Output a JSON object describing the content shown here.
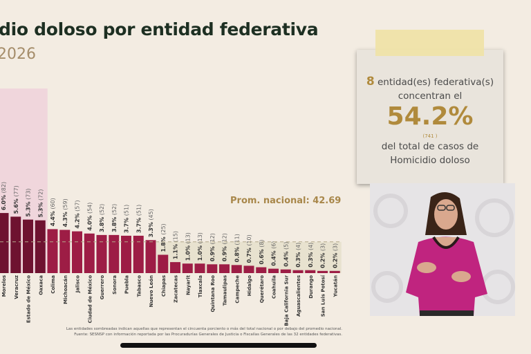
{
  "header": {
    "title": "dio doloso por entidad federativa",
    "subtitle": "2026"
  },
  "chart_data": {
    "type": "bar",
    "categories": [
      "Morelos",
      "Veracruz",
      "Estado de México",
      "Oaxaca",
      "Colima",
      "Michoacán",
      "Jalisco",
      "Ciudad de México",
      "Guerrero",
      "Sonora",
      "Puebla",
      "Tabasco",
      "Nuevo León",
      "Chiapas",
      "Zacatecas",
      "Nayarit",
      "Tlaxcala",
      "Quintana Roo",
      "Tamaulipas",
      "Campeche",
      "Hidalgo",
      "Querétaro",
      "Coahuila",
      "Baja California Sur",
      "Aguascalientes",
      "Durango",
      "San Luis Potosí",
      "Yucatán"
    ],
    "values": [
      82,
      77,
      73,
      72,
      60,
      59,
      57,
      54,
      52,
      52,
      51,
      51,
      45,
      25,
      15,
      13,
      13,
      12,
      12,
      11,
      10,
      8,
      6,
      5,
      4,
      4,
      3,
      3
    ],
    "percent_labels": [
      "6.0%",
      "5.6%",
      "5.3%",
      "5.3%",
      "4.4%",
      "4.3%",
      "4.2%",
      "4.0%",
      "3.8%",
      "3.8%",
      "3.7%",
      "3.7%",
      "3.3%",
      "1.8%",
      "1.1%",
      "1.0%",
      "1.0%",
      "0.9%",
      "0.9%",
      "0.8%",
      "0.7%",
      "0.6%",
      "0.4%",
      "0.4%",
      "0.3%",
      "0.3%",
      "0.2%",
      "0.2%"
    ],
    "highlight_top_count": 4,
    "average": 42.69,
    "average_label": "Prom. nacional: 42.69",
    "colors": {
      "top": "#6e1230",
      "regular": "#9d1d45",
      "top_shade": "#f0d6dc",
      "below_shade": "#e8e2cf",
      "avg_line": "#b3a98a"
    },
    "grid": false
  },
  "footnotes": {
    "line1": "Las entidades sombreadas indican aquellas que representan el cincuenta porciento o más del total nacional o por debajo del promedio nacional.",
    "line2": "Fuente: SESNSP con información reportada por las Procuradurías Generales de Justicia o Fiscalías Generales de las 32 entidades federativas."
  },
  "card": {
    "count": "8",
    "line1": "entidad(es) federativa(s)",
    "line2": "concentran el",
    "percent": "54.2%",
    "cases": "(741 )",
    "line3": "del total de casos de",
    "line4": "Homicidio doloso"
  }
}
